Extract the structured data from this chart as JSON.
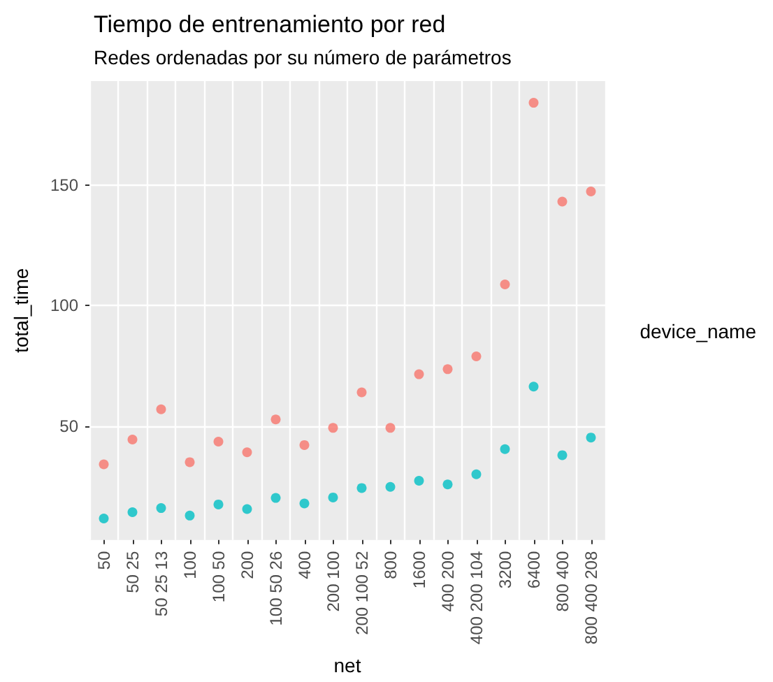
{
  "chart_data": {
    "type": "scatter",
    "title": "Tiempo de entrenamiento por red",
    "subtitle": "Redes ordenadas por su número de parámetros",
    "xlabel": "net",
    "ylabel": "total_time",
    "legend_title": "device_name",
    "categories": [
      "50",
      "50 25",
      "50 25 13",
      "100",
      "100 50",
      "200",
      "100 50 26",
      "400",
      "200 100",
      "200 100 52",
      "800",
      "1600",
      "400 200",
      "400 200 104",
      "3200",
      "6400",
      "800 400",
      "800 400 208"
    ],
    "series": [
      {
        "color": "#f8766d",
        "values": [
          34.3,
          44.6,
          57.1,
          35.2,
          43.7,
          39.3,
          52.9,
          42.3,
          49.4,
          64.1,
          49.4,
          71.6,
          73.7,
          79.0,
          108.8,
          184.0,
          143.1,
          147.3
        ]
      },
      {
        "color": "#00bfc4",
        "values": [
          11.9,
          14.5,
          16.2,
          13.1,
          17.7,
          15.8,
          20.4,
          18.1,
          20.6,
          24.5,
          25.0,
          27.5,
          26.0,
          30.2,
          40.6,
          66.5,
          38.1,
          45.4
        ]
      }
    ],
    "ylim": [
      3,
      193
    ],
    "yticks": [
      50,
      100,
      150
    ],
    "grid": true,
    "marker": "circle"
  }
}
